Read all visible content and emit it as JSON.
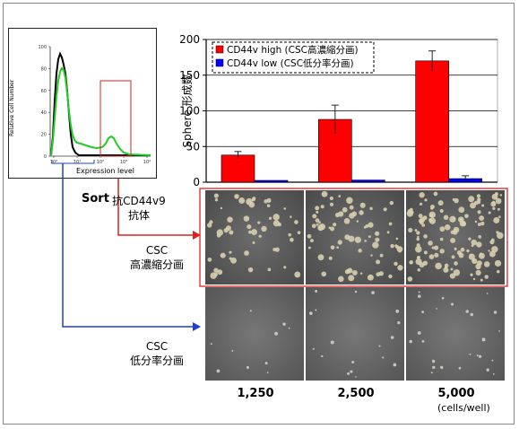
{
  "histogram": {
    "ylabel": "Relative Cell Number",
    "xlabel": "Expression level",
    "yticks": [
      "100",
      "80",
      "60",
      "40",
      "20",
      "0"
    ],
    "xticks": [
      "10⁰",
      "10¹",
      "10²",
      "10³",
      "10⁴"
    ],
    "colors": {
      "isotype": "#000000",
      "stained": "#22cc22",
      "gate_high": "#dd2222",
      "gate_low": "#1f3fd0"
    }
  },
  "labels": {
    "sort": "Sort",
    "antibody_line1": "抗CD44v9",
    "antibody_line2": "抗体",
    "high_line1": "CSC",
    "high_line2": "高濃縮分画",
    "low_line1": "CSC",
    "low_line2": "低分率分画",
    "units": "(cells/well)"
  },
  "chart_data": {
    "type": "bar",
    "ylabel": "Sphere  形成数",
    "ylim": [
      0,
      200
    ],
    "yticks": [
      0,
      50,
      100,
      150,
      200
    ],
    "categories": [
      "1,250",
      "2,500",
      "5,000"
    ],
    "series": [
      {
        "name": "CD44v high (CSC高濃縮分画)",
        "color": "#ff0000",
        "values": [
          38,
          88,
          170
        ],
        "errors": [
          5,
          20,
          14
        ]
      },
      {
        "name": "CD44v low (CSC低分率分画)",
        "color": "#0000ff",
        "values": [
          2,
          3,
          5
        ],
        "errors": [
          0,
          0,
          4
        ]
      }
    ],
    "legend": "top-left",
    "grid": true
  }
}
